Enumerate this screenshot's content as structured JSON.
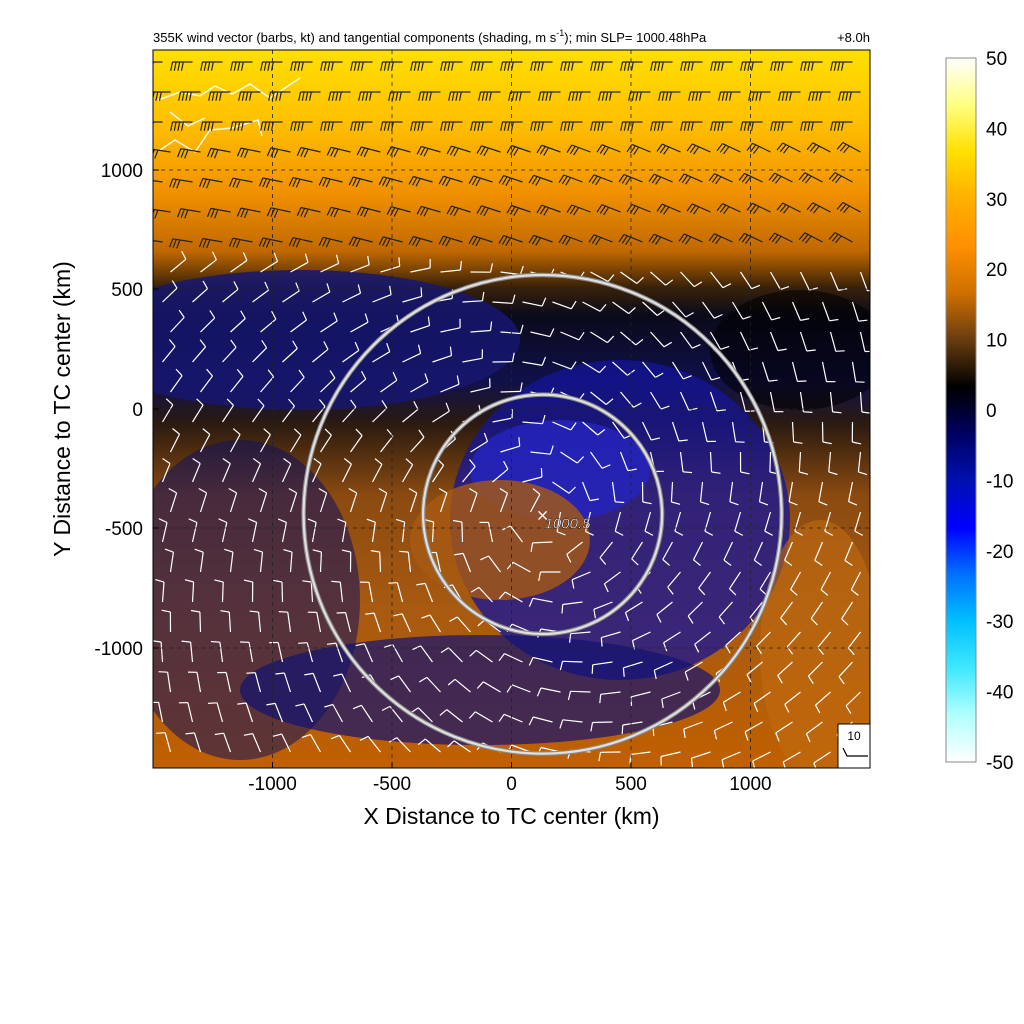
{
  "chart_data": {
    "type": "heatmap",
    "title": "355K wind vector (barbs, kt) and tangential components (shading, m s",
    "title_sup": "-1",
    "title_suffix": "); min SLP= 1000.48hPa",
    "time_label": "+8.0h",
    "xlabel": "X Distance to TC center (km)",
    "ylabel": "Y Distance to TC center (km)",
    "xlim": [
      -1500,
      1500
    ],
    "ylim": [
      -1500,
      1500
    ],
    "xticks": [
      -1000,
      -500,
      0,
      500,
      1000
    ],
    "xtick_labels": [
      "-1000",
      "-500",
      "0",
      "500",
      "1000"
    ],
    "yticks": [
      -1000,
      -500,
      0,
      500,
      1000
    ],
    "ytick_labels": [
      "-1000",
      "-500",
      "0",
      "500",
      "1000"
    ],
    "grid": true,
    "grid_style": "dashed",
    "colorbar": {
      "min": -50,
      "max": 50,
      "ticks": [
        50,
        40,
        30,
        20,
        10,
        0,
        -10,
        -20,
        -30,
        -40,
        -50
      ],
      "tick_labels": [
        "50",
        "40",
        "30",
        "20",
        "10",
        "0",
        "-10",
        "-20",
        "-30",
        "-40",
        "-50"
      ],
      "colors": [
        "#ffffff",
        "#ffff80",
        "#ffe000",
        "#ffb000",
        "#ff9000",
        "#d07000",
        "#6a3c10",
        "#000000",
        "#000060",
        "#0010b0",
        "#0000ff",
        "#0070ff",
        "#00c0ff",
        "#40e8ff",
        "#b0ffff",
        "#ffffff"
      ]
    },
    "min_slp_marker": {
      "x": 130,
      "y": -440,
      "label": "1000.5"
    },
    "range_rings": [
      {
        "center": [
          130,
          -440
        ],
        "radius": 500
      },
      {
        "center": [
          130,
          -440
        ],
        "radius": 1000
      }
    ],
    "reference_barb": {
      "label": "10"
    }
  }
}
